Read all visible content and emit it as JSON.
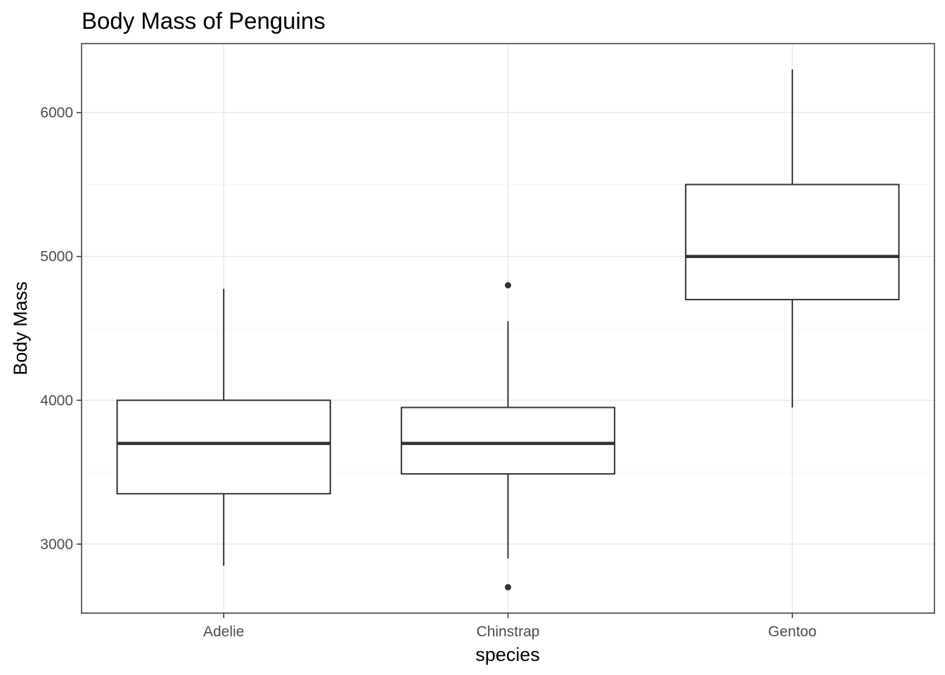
{
  "chart_data": {
    "type": "boxplot",
    "title": "Body Mass of Penguins",
    "xlabel": "species",
    "ylabel": "Body Mass",
    "categories": [
      "Adelie",
      "Chinstrap",
      "Gentoo"
    ],
    "ylim": [
      2520,
      6480
    ],
    "y_major_ticks": [
      3000,
      4000,
      5000,
      6000
    ],
    "y_tick_labels": [
      "3000",
      "4000",
      "5000",
      "6000"
    ],
    "y_minor_ticks": [
      3500,
      4500,
      5500
    ],
    "grid": true,
    "legend": "none",
    "boxes": [
      {
        "category": "Adelie",
        "min": 2850,
        "q1": 3350,
        "median": 3700,
        "q3": 4000,
        "max": 4775,
        "outliers": []
      },
      {
        "category": "Chinstrap",
        "min": 2900,
        "q1": 3488,
        "median": 3700,
        "q3": 3950,
        "max": 4550,
        "outliers": [
          2700,
          4800
        ]
      },
      {
        "category": "Gentoo",
        "min": 3950,
        "q1": 4700,
        "median": 5000,
        "q3": 5500,
        "max": 6300,
        "outliers": []
      }
    ],
    "colors": {
      "box_outline": "#333333",
      "box_fill": "#ffffff",
      "panel_border": "#333333",
      "grid_major": "#ebebeb",
      "grid_minor": "#f5f5f5",
      "tick_label": "#4d4d4d",
      "text": "#000000"
    }
  }
}
